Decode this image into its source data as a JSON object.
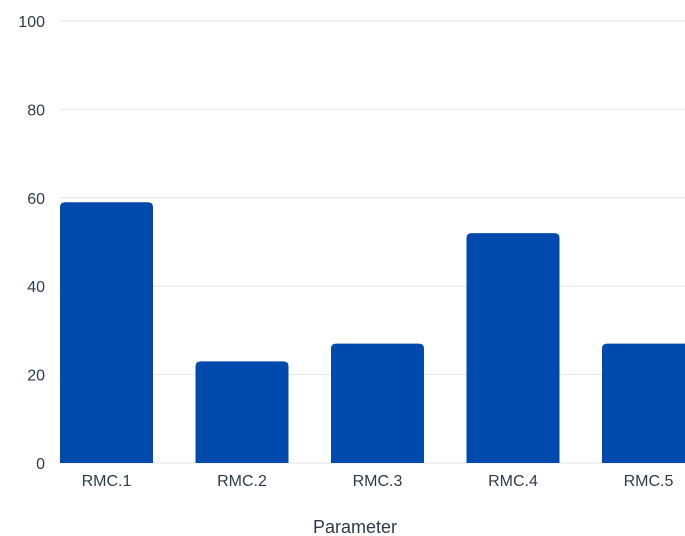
{
  "chart_data": {
    "type": "bar",
    "categories": [
      "RMC.1",
      "RMC.2",
      "RMC.3",
      "RMC.4",
      "RMC.5"
    ],
    "values": [
      59,
      23,
      27,
      52,
      27
    ],
    "xlabel": "Parameter",
    "ylabel": "",
    "ylim": [
      0,
      100
    ],
    "yticks": [
      "0",
      "20",
      "40",
      "60",
      "80",
      "100"
    ],
    "grid": true,
    "bar_color": "#004aad",
    "grid_color": "#e6e6e6",
    "text_color": "#2f3b4a"
  }
}
